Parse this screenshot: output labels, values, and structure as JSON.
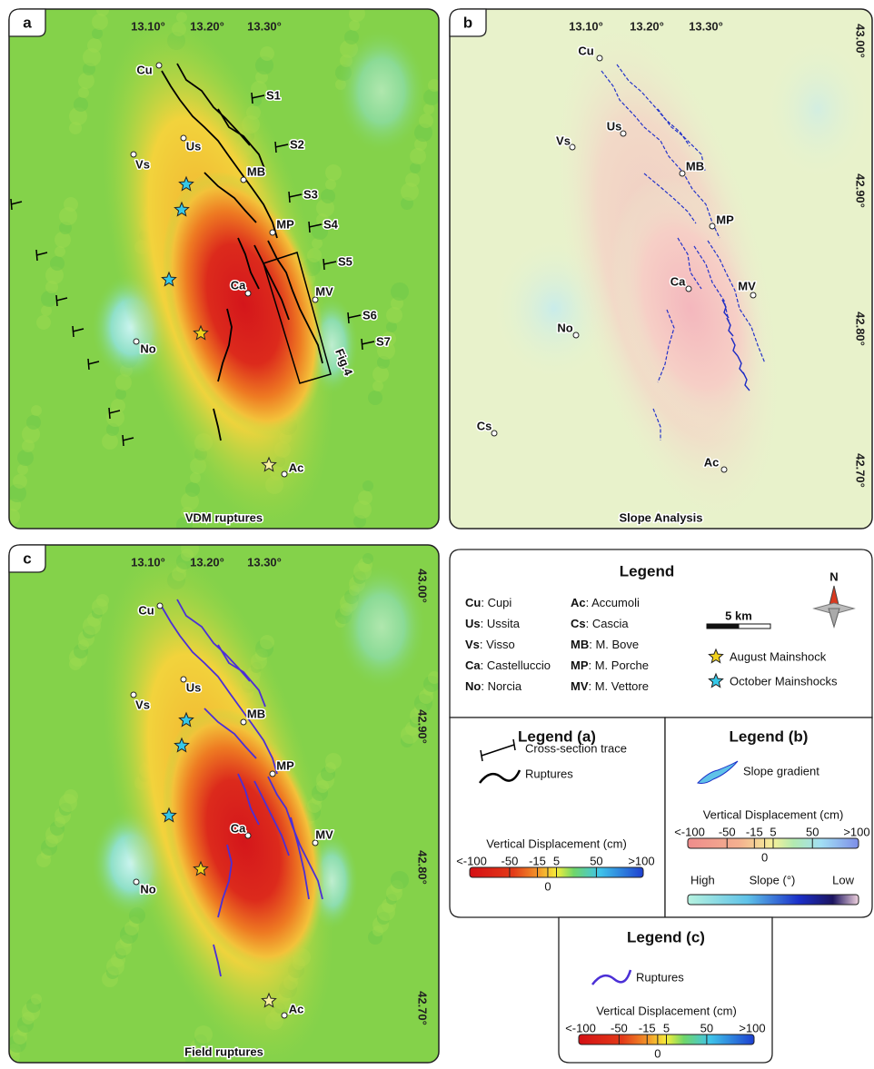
{
  "panels": [
    {
      "label": "a",
      "lon_labels": [
        "13.10°",
        "13.20°",
        "13.30°"
      ],
      "places": [
        "Cu",
        "Us",
        "Vs",
        "MB",
        "MP",
        "Ca",
        "MV",
        "No",
        "Ac"
      ],
      "sections": [
        "S1",
        "S2",
        "S3",
        "S4",
        "S5",
        "S6",
        "S7"
      ],
      "box_label": "Fig.4",
      "title": "VDM ruptures"
    },
    {
      "label": "b",
      "lon_labels": [
        "13.10°",
        "13.20°",
        "13.30°"
      ],
      "lat_labels": [
        "43.00°",
        "42.90°",
        "42.80°",
        "42.70°"
      ],
      "places": [
        "Cu",
        "Us",
        "Vs",
        "MB",
        "MP",
        "Ca",
        "MV",
        "No",
        "Cs",
        "Ac"
      ],
      "title": "Slope Analysis"
    },
    {
      "label": "c",
      "lon_labels": [
        "13.10°",
        "13.20°",
        "13.30°"
      ],
      "lat_labels": [
        "43.00°",
        "42.90°",
        "42.80°",
        "42.70°"
      ],
      "places": [
        "Cu",
        "Us",
        "Vs",
        "MB",
        "MP",
        "Ca",
        "MV",
        "No",
        "Ac"
      ],
      "title": "Field ruptures"
    }
  ],
  "legend": {
    "title": "Legend",
    "abbreviations": [
      "Cu: Cupi",
      "Us: Ussita",
      "Vs: Visso",
      "Ca: Castelluccio",
      "No: Norcia",
      "Ac: Accumoli",
      "Cs: Cascia",
      "MB: M. Bove",
      "MP: M. Porche",
      "MV: M. Vettore"
    ],
    "scale": "5 km",
    "north": "N",
    "symbols": [
      "August Mainshock",
      "October Mainshocks"
    ]
  },
  "legend_a": {
    "title": "Legend (a)",
    "items": [
      "Cross-section trace",
      "Ruptures"
    ],
    "scale_title": "Vertical Displacement (cm)",
    "scale_labels": [
      "<-100",
      "-50",
      "-15",
      "5",
      "50",
      ">100"
    ],
    "zero": "0"
  },
  "legend_b": {
    "title": "Legend (b)",
    "items": [
      "Slope gradient"
    ],
    "scale_title": "Vertical Displacement (cm)",
    "scale_labels": [
      "<-100",
      "-50",
      "-15",
      "5",
      "50",
      ">100"
    ],
    "zero": "0",
    "slope_labels": [
      "High",
      "Slope (°)",
      "Low"
    ]
  },
  "legend_c": {
    "title": "Legend (c)",
    "items": [
      "Ruptures"
    ],
    "scale_title": "Vertical Displacement (cm)",
    "scale_labels": [
      "<-100",
      "-50",
      "-15",
      "5",
      "50",
      ">100"
    ],
    "zero": "0"
  }
}
